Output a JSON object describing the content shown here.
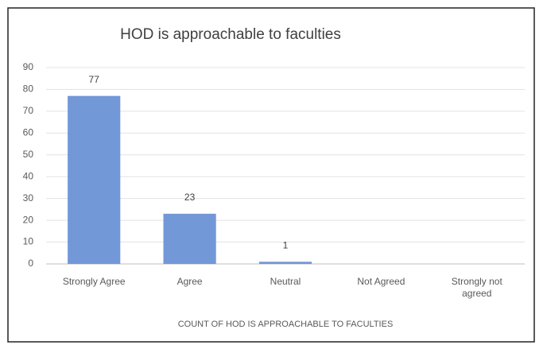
{
  "chart_data": {
    "type": "bar",
    "title": "HOD is approachable to faculties",
    "x_label": "COUNT OF HOD IS APPROACHABLE TO FACULTIES",
    "categories": [
      "Strongly Agree",
      "Agree",
      "Neutral",
      "Not Agreed",
      "Strongly not agreed"
    ],
    "values": [
      77,
      23,
      1,
      0,
      0
    ],
    "color": "#7398d8",
    "ylim": [
      0,
      90
    ],
    "yticks": [
      0,
      10,
      20,
      30,
      40,
      50,
      60,
      70,
      80,
      90
    ],
    "grid": true
  }
}
